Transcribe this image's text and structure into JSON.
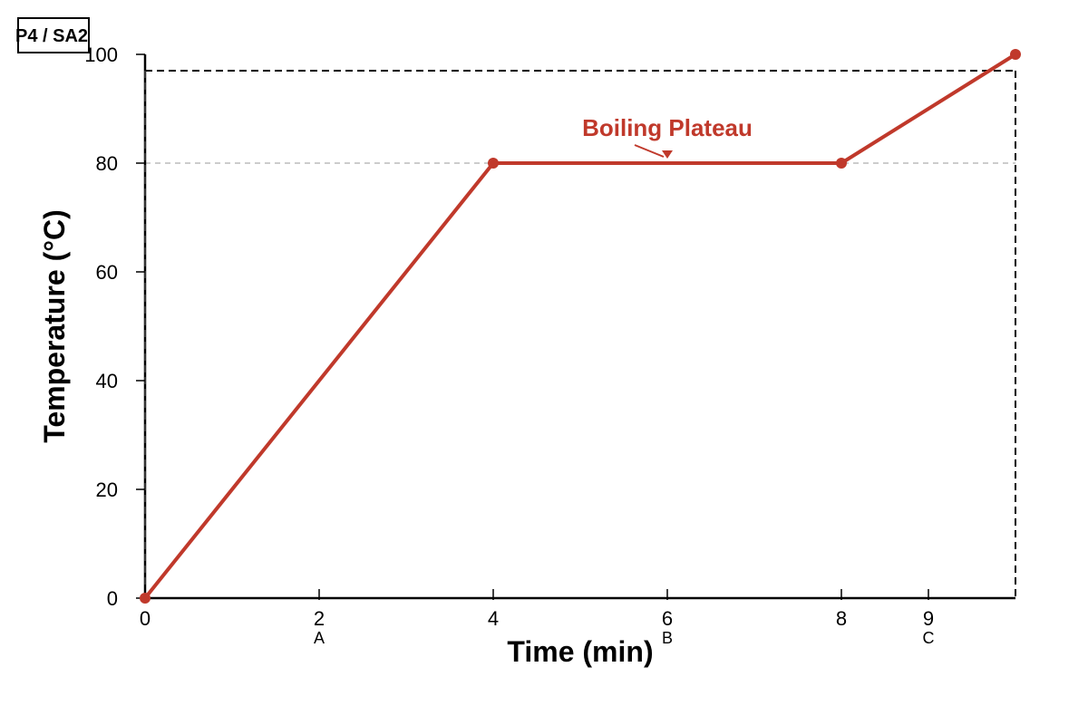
{
  "page_tag": "P4 / SA2",
  "chart_data": {
    "type": "line",
    "xlabel": "Time (min)",
    "ylabel": "Temperature (°C)",
    "xlim": [
      0,
      10
    ],
    "ylim": [
      0,
      100
    ],
    "x_ticks": [
      {
        "value": 0,
        "label": "0",
        "sublabel": ""
      },
      {
        "value": 2,
        "label": "2",
        "sublabel": "A"
      },
      {
        "value": 4,
        "label": "4",
        "sublabel": ""
      },
      {
        "value": 6,
        "label": "6",
        "sublabel": "B"
      },
      {
        "value": 8,
        "label": "8",
        "sublabel": ""
      },
      {
        "value": 9,
        "label": "9",
        "sublabel": "C"
      }
    ],
    "y_ticks": [
      {
        "value": 0,
        "label": "0"
      },
      {
        "value": 20,
        "label": "20"
      },
      {
        "value": 40,
        "label": "40"
      },
      {
        "value": 60,
        "label": "60"
      },
      {
        "value": 80,
        "label": "80"
      },
      {
        "value": 100,
        "label": "100"
      }
    ],
    "series": [
      {
        "color": "#c0392b",
        "x": [
          0,
          4,
          8,
          10
        ],
        "y": [
          0,
          80,
          80,
          100
        ]
      }
    ],
    "reference_line_y": 80,
    "dashed_frame_top_y": 97,
    "annotation": {
      "text": "Boiling Plateau",
      "x": 6,
      "y": 80,
      "color": "#c0392b"
    },
    "grid": false,
    "colors": {
      "line": "#c0392b",
      "axis": "#000000",
      "reference": "#bbbbbb"
    }
  }
}
